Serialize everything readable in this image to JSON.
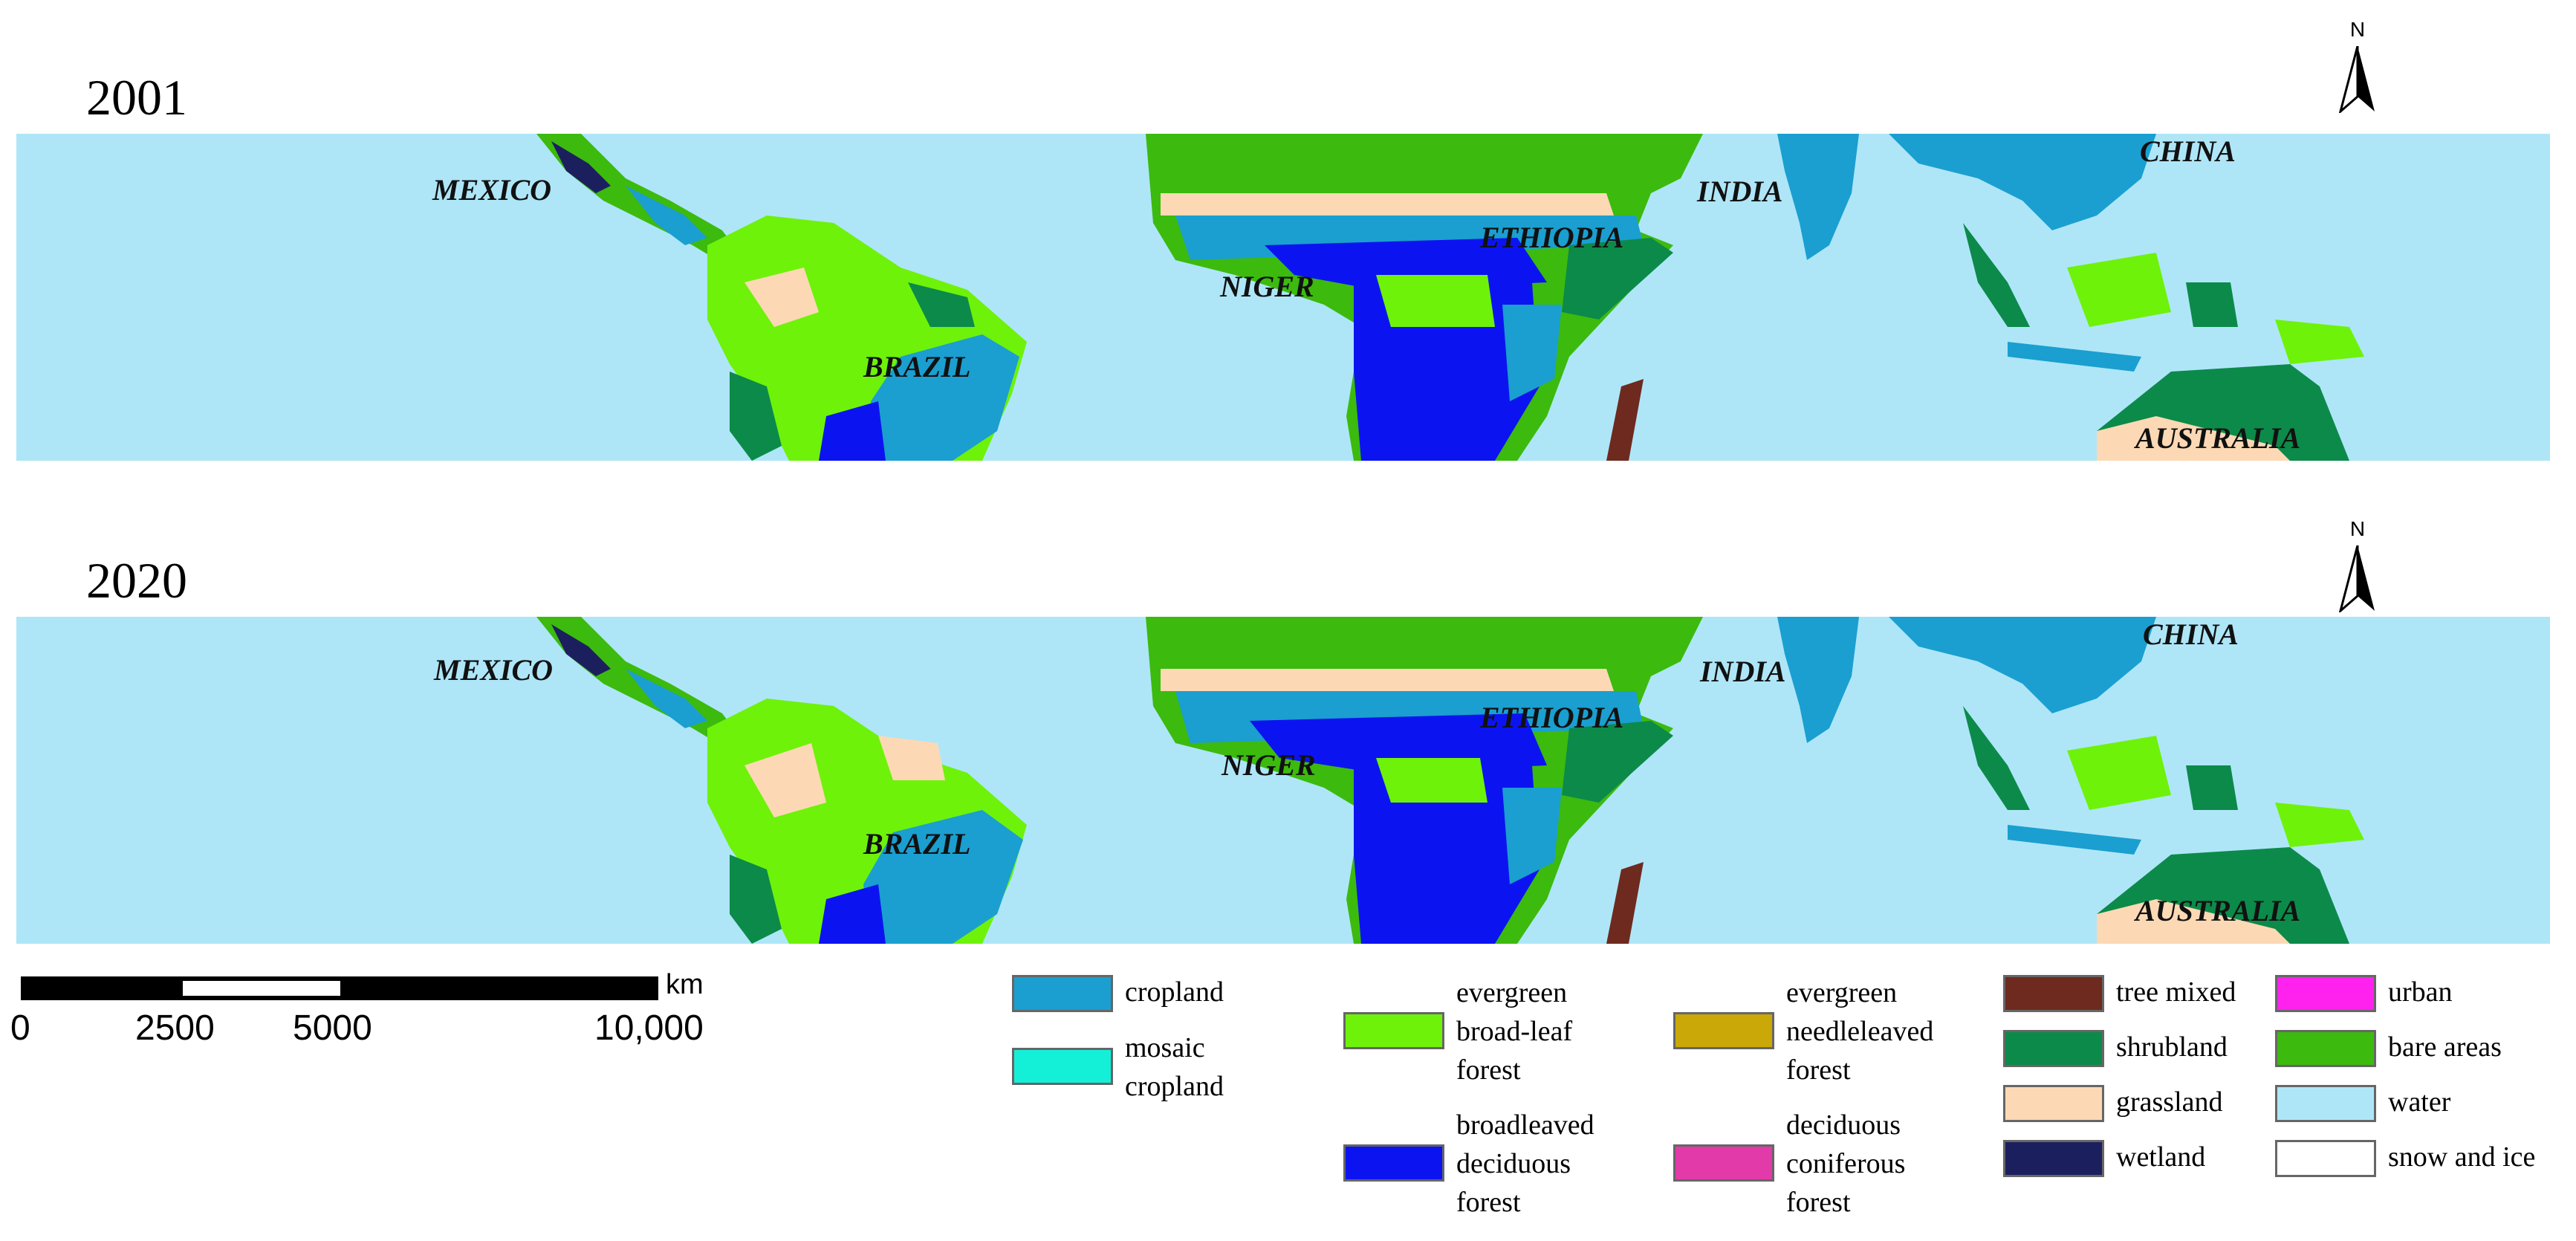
{
  "panels": [
    {
      "year": "2001"
    },
    {
      "year": "2020"
    }
  ],
  "north_label": "N",
  "countries": {
    "mexico": "MEXICO",
    "brazil": "BRAZIL",
    "niger": "NIGER",
    "ethiopia": "ETHIOPIA",
    "india": "INDIA",
    "china": "CHINA",
    "australia": "AUSTRALIA"
  },
  "scale": {
    "unit": "km",
    "ticks": [
      "0",
      "2500",
      "5000",
      "10,000"
    ]
  },
  "legend": [
    {
      "label": "cropland",
      "color": "#1a9fd0"
    },
    {
      "label": "mosaic\ncropland",
      "color": "#14f0d8"
    },
    {
      "label": "evergreen\nbroad-leaf\nforest",
      "color": "#6ef20a"
    },
    {
      "label": "broadleaved\ndeciduous\nforest",
      "color": "#0b14f0"
    },
    {
      "label": "evergreen\nneedleleaved\nforest",
      "color": "#c9a807"
    },
    {
      "label": "deciduous\nconiferous\nforest",
      "color": "#e23aa8"
    },
    {
      "label": "tree mixed",
      "color": "#6e2a1e"
    },
    {
      "label": "shrubland",
      "color": "#0c8a4a"
    },
    {
      "label": "grassland",
      "color": "#fcd9b4"
    },
    {
      "label": "wetland",
      "color": "#1c1f5e"
    },
    {
      "label": "urban",
      "color": "#ff22ee"
    },
    {
      "label": "bare areas",
      "color": "#3cba0e"
    },
    {
      "label": "water",
      "color": "#aee6f8"
    },
    {
      "label": "snow and ice",
      "color": "#ffffff"
    }
  ]
}
